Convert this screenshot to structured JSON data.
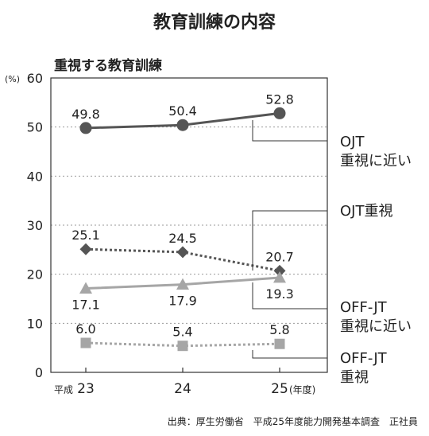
{
  "title": "教育訓練の内容",
  "subtitle": "重視する教育訓練",
  "source": "出典：厚生労働省　平成25年度能力開発基本調査　正社員",
  "colors": {
    "dark": "#555555",
    "mid": "#777777",
    "light": "#a6a6a6",
    "grid": "#999999"
  },
  "chart_data": {
    "type": "line",
    "y_unit": "(%)",
    "ylim": [
      0,
      60
    ],
    "yticks": [
      "0",
      "10",
      "20",
      "30",
      "40",
      "50",
      "60"
    ],
    "x_prefix": "平成",
    "x_suffix": "(年度)",
    "categories": [
      "23",
      "24",
      "25"
    ],
    "grid": "dashed horizontal",
    "series": [
      {
        "name": "OJT重視に近い",
        "label_lines": [
          "OJT",
          "重視に近い"
        ],
        "values": [
          49.8,
          50.4,
          52.8
        ],
        "value_labels": [
          "49.8",
          "50.4",
          "52.8"
        ],
        "marker": "circle",
        "line": "solid",
        "color": "#555555"
      },
      {
        "name": "OJT重視",
        "label_lines": [
          "OJT重視"
        ],
        "values": [
          25.1,
          24.5,
          20.7
        ],
        "value_labels": [
          "25.1",
          "24.5",
          "20.7"
        ],
        "marker": "diamond",
        "line": "dotted",
        "color": "#555555"
      },
      {
        "name": "OFF-JT重視に近い",
        "label_lines": [
          "OFF-JT",
          "重視に近い"
        ],
        "values": [
          17.1,
          17.9,
          19.3
        ],
        "value_labels": [
          "17.1",
          "17.9",
          "19.3"
        ],
        "marker": "triangle",
        "line": "solid",
        "color": "#a6a6a6"
      },
      {
        "name": "OFF-JT重視",
        "label_lines": [
          "OFF-JT",
          "重視"
        ],
        "values": [
          6.0,
          5.4,
          5.8
        ],
        "value_labels": [
          "6.0",
          "5.4",
          "5.8"
        ],
        "marker": "square",
        "line": "dotted",
        "color": "#a6a6a6"
      }
    ]
  }
}
